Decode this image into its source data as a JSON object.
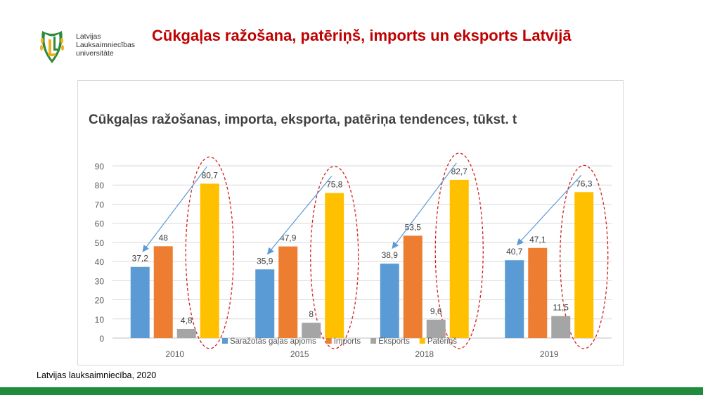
{
  "header": {
    "logo_lines": [
      "Latvijas",
      "Lauksaimniecības",
      "universitāte"
    ],
    "title": "Cūkgaļas ražošana, patēriņš, imports un eksports Latvijā"
  },
  "footer": {
    "source": "Latvijas lauksaimniecība, 2020"
  },
  "colors": {
    "title": "#c00000",
    "footer_bar": "#1e8c3c",
    "highlight": "#d42020",
    "arrow": "#5b9bd5"
  },
  "chart_data": {
    "type": "bar",
    "title": "Cūkgaļas ražošanas, importa, eksporta, patēriņa tendences, tūkst. t",
    "categories": [
      "2010",
      "2015",
      "2018",
      "2019"
    ],
    "series": [
      {
        "name": "Saražotās gaļas apjoms",
        "color": "#5b9bd5",
        "values": [
          37.2,
          35.9,
          38.9,
          40.7
        ],
        "labels": [
          "37,2",
          "35,9",
          "38,9",
          "40,7"
        ]
      },
      {
        "name": "Imports",
        "color": "#ed7d31",
        "values": [
          48,
          47.9,
          53.5,
          47.1
        ],
        "labels": [
          "48",
          "47,9",
          "53,5",
          "47,1"
        ]
      },
      {
        "name": "Eksports",
        "color": "#a5a5a5",
        "values": [
          4.8,
          8,
          9.6,
          11.5
        ],
        "labels": [
          "4,8",
          "8",
          "9,6",
          "11,5"
        ]
      },
      {
        "name": "Patēriņš",
        "color": "#ffc000",
        "values": [
          80.7,
          75.8,
          82.7,
          76.3
        ],
        "labels": [
          "80,7",
          "75,8",
          "82,7",
          "76,3"
        ]
      }
    ],
    "yticks": [
      0,
      10,
      20,
      30,
      40,
      50,
      60,
      70,
      80,
      90
    ],
    "ylim": [
      0,
      90
    ],
    "grid": true,
    "legend": "bottom",
    "annotations": "dashed red ellipses around consumption bars; arrows from consumption to production bars"
  }
}
